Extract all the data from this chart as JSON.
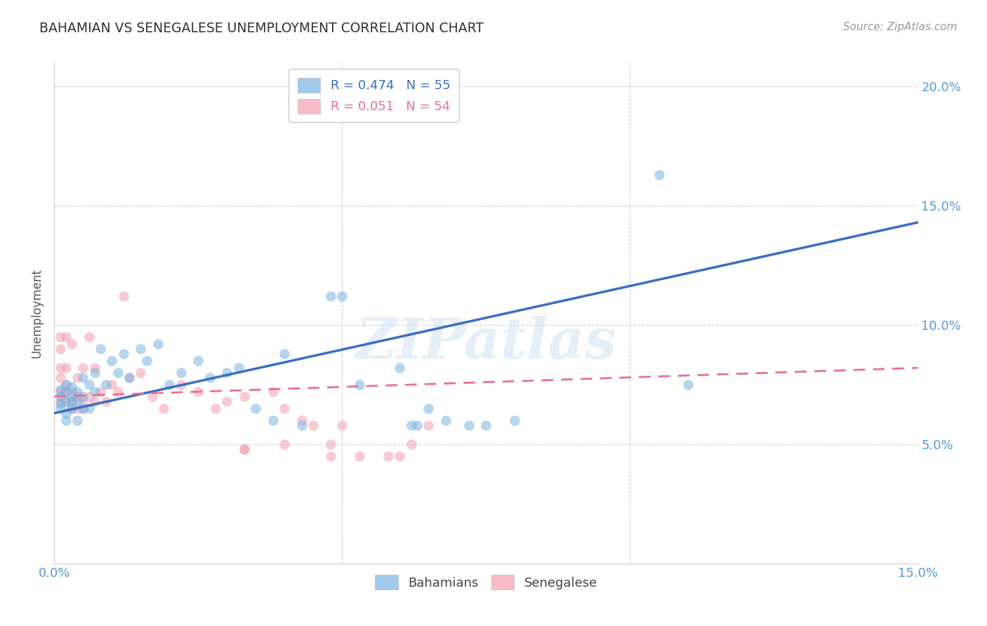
{
  "title": "BAHAMIAN VS SENEGALESE UNEMPLOYMENT CORRELATION CHART",
  "source": "Source: ZipAtlas.com",
  "xlabel_bottom": "Bahamians",
  "xlabel_bottom2": "Senegalese",
  "ylabel": "Unemployment",
  "watermark": "ZIPatlas",
  "xlim": [
    0.0,
    0.15
  ],
  "ylim": [
    0.0,
    0.21
  ],
  "x_ticks": [
    0.0,
    0.05,
    0.1,
    0.15
  ],
  "x_tick_labels": [
    "0.0%",
    "",
    "",
    "15.0%"
  ],
  "y_ticks": [
    0.05,
    0.1,
    0.15,
    0.2
  ],
  "y_tick_labels": [
    "5.0%",
    "10.0%",
    "15.0%",
    "20.0%"
  ],
  "bahamian_color": "#7ab3e0",
  "senegalese_color": "#f4a0b0",
  "bahamian_line_color": "#3a6fbf",
  "senegalese_line_color": "#e87090",
  "bahamian_R": 0.474,
  "bahamian_N": 55,
  "senegalese_R": 0.051,
  "senegalese_N": 54,
  "background_color": "#ffffff",
  "grid_color": "#cccccc",
  "tick_label_color": "#5599dd",
  "title_color": "#333333",
  "bah_line_x0": 0.0,
  "bah_line_y0": 0.063,
  "bah_line_x1": 0.15,
  "bah_line_y1": 0.143,
  "sen_line_x0": 0.0,
  "sen_line_y0": 0.07,
  "sen_line_x1": 0.15,
  "sen_line_y1": 0.082,
  "bahamian_pts_x": [
    0.001,
    0.001,
    0.001,
    0.001,
    0.002,
    0.002,
    0.002,
    0.002,
    0.002,
    0.003,
    0.003,
    0.003,
    0.003,
    0.004,
    0.004,
    0.004,
    0.005,
    0.005,
    0.005,
    0.006,
    0.006,
    0.007,
    0.007,
    0.008,
    0.009,
    0.01,
    0.011,
    0.012,
    0.013,
    0.015,
    0.016,
    0.018,
    0.02,
    0.022,
    0.025,
    0.027,
    0.03,
    0.032,
    0.035,
    0.038,
    0.04,
    0.043,
    0.048,
    0.05,
    0.053,
    0.06,
    0.062,
    0.063,
    0.065,
    0.068,
    0.072,
    0.075,
    0.08,
    0.105,
    0.11
  ],
  "bahamian_pts_y": [
    0.065,
    0.07,
    0.073,
    0.067,
    0.068,
    0.072,
    0.075,
    0.063,
    0.06,
    0.068,
    0.065,
    0.07,
    0.074,
    0.068,
    0.072,
    0.06,
    0.065,
    0.07,
    0.078,
    0.075,
    0.065,
    0.08,
    0.072,
    0.09,
    0.075,
    0.085,
    0.08,
    0.088,
    0.078,
    0.09,
    0.085,
    0.092,
    0.075,
    0.08,
    0.085,
    0.078,
    0.08,
    0.082,
    0.065,
    0.06,
    0.088,
    0.058,
    0.112,
    0.112,
    0.075,
    0.082,
    0.058,
    0.058,
    0.065,
    0.06,
    0.058,
    0.058,
    0.06,
    0.163,
    0.075
  ],
  "senegalese_pts_x": [
    0.001,
    0.001,
    0.001,
    0.001,
    0.001,
    0.001,
    0.002,
    0.002,
    0.002,
    0.002,
    0.002,
    0.003,
    0.003,
    0.003,
    0.003,
    0.004,
    0.004,
    0.004,
    0.005,
    0.005,
    0.005,
    0.006,
    0.006,
    0.007,
    0.007,
    0.008,
    0.009,
    0.01,
    0.011,
    0.012,
    0.013,
    0.015,
    0.017,
    0.019,
    0.022,
    0.025,
    0.028,
    0.03,
    0.033,
    0.038,
    0.04,
    0.043,
    0.045,
    0.048,
    0.05,
    0.053,
    0.058,
    0.06,
    0.062,
    0.065,
    0.033,
    0.033,
    0.04,
    0.048
  ],
  "senegalese_pts_y": [
    0.068,
    0.072,
    0.078,
    0.082,
    0.09,
    0.095,
    0.068,
    0.072,
    0.075,
    0.082,
    0.095,
    0.065,
    0.068,
    0.072,
    0.092,
    0.065,
    0.07,
    0.078,
    0.065,
    0.068,
    0.082,
    0.07,
    0.095,
    0.068,
    0.082,
    0.072,
    0.068,
    0.075,
    0.072,
    0.112,
    0.078,
    0.08,
    0.07,
    0.065,
    0.075,
    0.072,
    0.065,
    0.068,
    0.07,
    0.072,
    0.065,
    0.06,
    0.058,
    0.05,
    0.058,
    0.045,
    0.045,
    0.045,
    0.05,
    0.058,
    0.048,
    0.048,
    0.05,
    0.045
  ]
}
